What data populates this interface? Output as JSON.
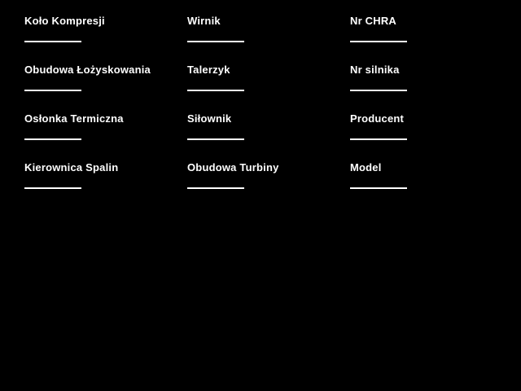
{
  "page": {
    "background_color": "#000000",
    "text_color": "#ffffff"
  },
  "form": {
    "fields": [
      {
        "label": "Koło Kompresji",
        "value": ""
      },
      {
        "label": "Wirnik",
        "value": ""
      },
      {
        "label": "Nr CHRA",
        "value": ""
      },
      {
        "label": "Obudowa Łożyskowania",
        "value": ""
      },
      {
        "label": "Talerzyk",
        "value": ""
      },
      {
        "label": "Nr silnika",
        "value": ""
      },
      {
        "label": "Osłonka Termiczna",
        "value": ""
      },
      {
        "label": "Siłownik",
        "value": ""
      },
      {
        "label": "Producent",
        "value": ""
      },
      {
        "label": "Kierownica Spalin",
        "value": ""
      },
      {
        "label": "Obudowa Turbiny",
        "value": ""
      },
      {
        "label": "Model",
        "value": ""
      }
    ]
  }
}
